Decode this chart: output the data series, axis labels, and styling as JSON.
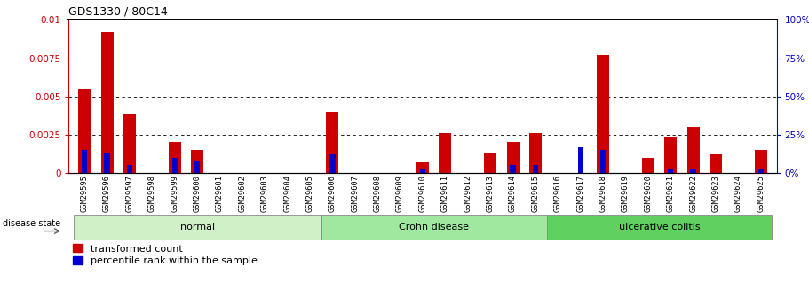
{
  "title": "GDS1330 / 80C14",
  "samples": [
    "GSM29595",
    "GSM29596",
    "GSM29597",
    "GSM29598",
    "GSM29599",
    "GSM29600",
    "GSM29601",
    "GSM29602",
    "GSM29603",
    "GSM29604",
    "GSM29605",
    "GSM29606",
    "GSM29607",
    "GSM29608",
    "GSM29609",
    "GSM29610",
    "GSM29611",
    "GSM29612",
    "GSM29613",
    "GSM29614",
    "GSM29615",
    "GSM29616",
    "GSM29617",
    "GSM29618",
    "GSM29619",
    "GSM29620",
    "GSM29621",
    "GSM29622",
    "GSM29623",
    "GSM29624",
    "GSM29625"
  ],
  "transformed_count": [
    0.0055,
    0.0092,
    0.0038,
    0.0,
    0.002,
    0.0015,
    0.0,
    0.0,
    0.0,
    0.0,
    0.0,
    0.004,
    0.0,
    0.0,
    0.0,
    0.0007,
    0.0026,
    0.0,
    0.0013,
    0.002,
    0.0026,
    0.0,
    0.0,
    0.0077,
    0.0,
    0.001,
    0.0024,
    0.003,
    0.0012,
    0.0,
    0.0015
  ],
  "percentile_rank": [
    15,
    13,
    5,
    0,
    10,
    8,
    0,
    0,
    0,
    0,
    0,
    12,
    0,
    0,
    0,
    3,
    0,
    0,
    0,
    5,
    5,
    0,
    17,
    15,
    0,
    0,
    3,
    3,
    0,
    0,
    3
  ],
  "groups": [
    {
      "label": "normal",
      "start": 0,
      "end": 10,
      "color": "#c8f0c0"
    },
    {
      "label": "Crohn disease",
      "start": 11,
      "end": 20,
      "color": "#90e890"
    },
    {
      "label": "ulcerative colitis",
      "start": 21,
      "end": 30,
      "color": "#50d050"
    }
  ],
  "ylim_left": [
    0,
    0.01
  ],
  "ylim_right": [
    0,
    100
  ],
  "yticks_left": [
    0,
    0.0025,
    0.005,
    0.0075,
    0.01
  ],
  "yticks_right": [
    0,
    25,
    50,
    75,
    100
  ],
  "bar_width": 0.55,
  "red_color": "#cc0000",
  "blue_color": "#0000cc",
  "grid_color": "black",
  "tick_label_bg": "#c8c8c8"
}
